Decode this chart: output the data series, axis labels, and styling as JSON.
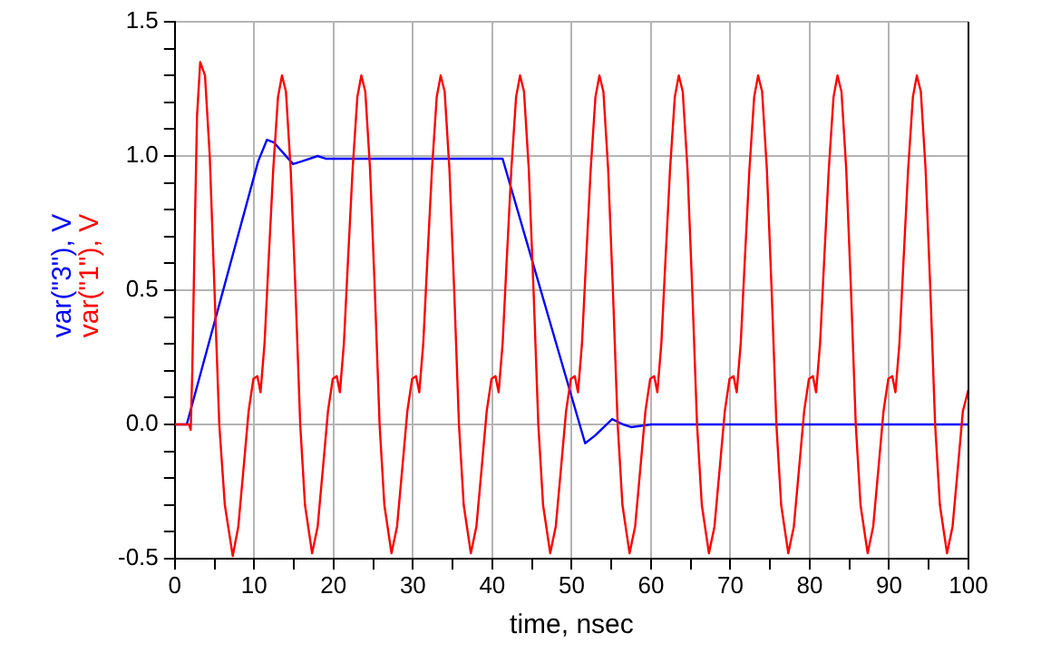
{
  "chart_data": {
    "type": "line",
    "xlabel": "time, nsec",
    "xlim": [
      0,
      100
    ],
    "xticks": [
      0,
      {
        "value": 5,
        "label": null
      },
      10,
      {
        "value": 15,
        "label": null
      },
      20,
      {
        "value": 25,
        "label": null
      },
      30,
      {
        "value": 35,
        "label": null
      },
      40,
      {
        "value": 45,
        "label": null
      },
      50,
      {
        "value": 55,
        "label": null
      },
      60,
      {
        "value": 65,
        "label": null
      },
      70,
      {
        "value": 75,
        "label": null
      },
      80,
      {
        "value": 85,
        "label": null
      },
      90,
      {
        "value": 95,
        "label": null
      },
      100
    ],
    "ylim": [
      -0.5,
      1.5
    ],
    "yticks": [
      {
        "value": -0.5,
        "label": "-0.5"
      },
      {
        "value": -0.4,
        "label": null
      },
      {
        "value": -0.3,
        "label": null
      },
      {
        "value": -0.2,
        "label": null
      },
      {
        "value": -0.1,
        "label": null
      },
      {
        "value": 0,
        "label": "0.0"
      },
      {
        "value": 0.1,
        "label": null
      },
      {
        "value": 0.2,
        "label": null
      },
      {
        "value": 0.3,
        "label": null
      },
      {
        "value": 0.4,
        "label": null
      },
      {
        "value": 0.5,
        "label": "0.5"
      },
      {
        "value": 0.6,
        "label": null
      },
      {
        "value": 0.7,
        "label": null
      },
      {
        "value": 0.8,
        "label": null
      },
      {
        "value": 0.9,
        "label": null
      },
      {
        "value": 1,
        "label": "1.0"
      },
      {
        "value": 1.1,
        "label": null
      },
      {
        "value": 1.2,
        "label": null
      },
      {
        "value": 1.3,
        "label": null
      },
      {
        "value": 1.4,
        "label": null
      },
      {
        "value": 1.5,
        "label": "1.5"
      }
    ],
    "grid": true,
    "marker": "none",
    "line_style": "solid",
    "series": [
      {
        "name": "var(\"1\"), V",
        "color": "#ff0000",
        "x": [
          0,
          1.8,
          2,
          2.2,
          2.5,
          2.8,
          3.2,
          3.8,
          4.4,
          5,
          5.6,
          6.3,
          7.3,
          8,
          8.7,
          9.3,
          9.9,
          10.4,
          10.8,
          11.3,
          11.8,
          12.4,
          13,
          13.5,
          14,
          14.6,
          15.2,
          15.8,
          16.4,
          17.3,
          18,
          18.7,
          19.3,
          19.9,
          20.4,
          20.8,
          21.3,
          21.8,
          22.4,
          23,
          23.5,
          24,
          24.6,
          25.2,
          25.8,
          26.4,
          27.3,
          28,
          28.7,
          29.3,
          29.9,
          30.4,
          30.8,
          31.3,
          31.8,
          32.4,
          33,
          33.5,
          34,
          34.6,
          35.2,
          35.8,
          36.4,
          37.3,
          38,
          38.7,
          39.3,
          39.9,
          40.4,
          40.8,
          41.3,
          41.8,
          42.4,
          43,
          43.5,
          44,
          44.6,
          45.2,
          45.8,
          46.4,
          47.3,
          48,
          48.7,
          49.3,
          49.9,
          50.4,
          50.8,
          51.3,
          51.8,
          52.4,
          53,
          53.5,
          54,
          54.6,
          55.2,
          55.8,
          56.4,
          57.3,
          58,
          58.7,
          59.3,
          59.9,
          60.4,
          60.8,
          61.3,
          61.8,
          62.4,
          63,
          63.5,
          64,
          64.6,
          65.2,
          65.8,
          66.4,
          67.3,
          68,
          68.7,
          69.3,
          69.9,
          70.4,
          70.8,
          71.3,
          71.8,
          72.4,
          73,
          73.5,
          74,
          74.6,
          75.2,
          75.8,
          76.4,
          77.3,
          78,
          78.7,
          79.3,
          79.9,
          80.4,
          80.8,
          81.3,
          81.8,
          82.4,
          83,
          83.5,
          84,
          84.6,
          85.2,
          85.8,
          86.4,
          87.3,
          88,
          88.7,
          89.3,
          89.9,
          90.4,
          90.8,
          91.3,
          91.8,
          92.4,
          93,
          93.5,
          94,
          94.6,
          95.2,
          95.8,
          96.4,
          97.3,
          98,
          98.7,
          99.3,
          100
        ],
        "values": [
          0,
          0,
          -0.02,
          0.2,
          0.7,
          1.15,
          1.35,
          1.3,
          1,
          0.5,
          0,
          -0.3,
          -0.49,
          -0.38,
          -0.15,
          0.05,
          0.17,
          0.18,
          0.12,
          0.3,
          0.6,
          0.95,
          1.22,
          1.3,
          1.24,
          0.95,
          0.5,
          0,
          -0.3,
          -0.48,
          -0.38,
          -0.15,
          0.05,
          0.17,
          0.18,
          0.12,
          0.3,
          0.6,
          0.95,
          1.22,
          1.3,
          1.24,
          0.95,
          0.5,
          0,
          -0.3,
          -0.48,
          -0.38,
          -0.15,
          0.05,
          0.17,
          0.18,
          0.12,
          0.3,
          0.6,
          0.95,
          1.22,
          1.3,
          1.24,
          0.95,
          0.5,
          0,
          -0.3,
          -0.48,
          -0.38,
          -0.15,
          0.05,
          0.17,
          0.18,
          0.12,
          0.3,
          0.6,
          0.95,
          1.22,
          1.3,
          1.24,
          0.95,
          0.5,
          0,
          -0.3,
          -0.48,
          -0.38,
          -0.15,
          0.05,
          0.17,
          0.18,
          0.12,
          0.3,
          0.6,
          0.95,
          1.22,
          1.3,
          1.24,
          0.95,
          0.5,
          0,
          -0.3,
          -0.48,
          -0.38,
          -0.15,
          0.05,
          0.17,
          0.18,
          0.12,
          0.3,
          0.6,
          0.95,
          1.22,
          1.3,
          1.24,
          0.95,
          0.5,
          0,
          -0.3,
          -0.48,
          -0.38,
          -0.15,
          0.05,
          0.17,
          0.18,
          0.12,
          0.3,
          0.6,
          0.95,
          1.22,
          1.3,
          1.24,
          0.95,
          0.5,
          0,
          -0.3,
          -0.48,
          -0.38,
          -0.15,
          0.05,
          0.17,
          0.18,
          0.12,
          0.3,
          0.6,
          0.95,
          1.22,
          1.3,
          1.24,
          0.95,
          0.5,
          0,
          -0.3,
          -0.48,
          -0.38,
          -0.15,
          0.05,
          0.17,
          0.18,
          0.12,
          0.3,
          0.6,
          0.95,
          1.22,
          1.3,
          1.24,
          0.95,
          0.5,
          0,
          -0.3,
          -0.48,
          -0.38,
          -0.15,
          0.05,
          0.13
        ]
      },
      {
        "name": "var(\"3\"), V",
        "color": "#0000ff",
        "x": [
          0,
          1.5,
          10.5,
          11.6,
          12.5,
          14.9,
          16,
          18,
          19,
          41.3,
          51.7,
          53,
          55.1,
          56.5,
          57.5,
          60,
          100
        ],
        "values": [
          0,
          0,
          0.98,
          1.06,
          1.05,
          0.97,
          0.98,
          1,
          0.99,
          0.99,
          -0.07,
          -0.04,
          0.02,
          0,
          -0.01,
          0,
          0
        ]
      }
    ]
  }
}
